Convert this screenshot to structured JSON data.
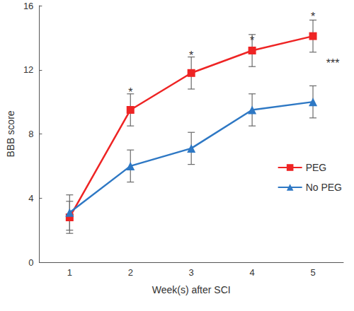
{
  "chart_data": {
    "type": "line",
    "x_label": "Week(s) after SCI",
    "y_label": "BBB score",
    "categories": [
      "1",
      "2",
      "3",
      "4",
      "5"
    ],
    "series": [
      {
        "name": "PEG",
        "color": "#ee2424",
        "marker": "square",
        "line_style": "solid",
        "values": [
          2.8,
          9.5,
          11.8,
          13.2,
          14.1
        ],
        "errors": [
          1.0,
          1.0,
          1.0,
          1.0,
          1.0
        ]
      },
      {
        "name": "No PEG",
        "color": "#2e78c4",
        "marker": "triangle",
        "line_style": "solid",
        "values": [
          3.1,
          6.0,
          7.1,
          9.5,
          10.0
        ],
        "errors": [
          1.1,
          1.0,
          1.0,
          1.0,
          1.0
        ]
      }
    ],
    "annotations": [
      {
        "text": "*",
        "x": "2",
        "y": 10.6
      },
      {
        "text": "*",
        "x": "3",
        "y": 12.9
      },
      {
        "text": "*",
        "x": "4",
        "y": 13.8
      },
      {
        "text": "*",
        "x": "5",
        "y": 15.3
      },
      {
        "text": "***",
        "x": "5",
        "y": 12.4
      }
    ],
    "ylim": [
      0,
      16
    ],
    "yticks": [
      0,
      4,
      8,
      12,
      16
    ],
    "grid": false,
    "legend": "right"
  }
}
